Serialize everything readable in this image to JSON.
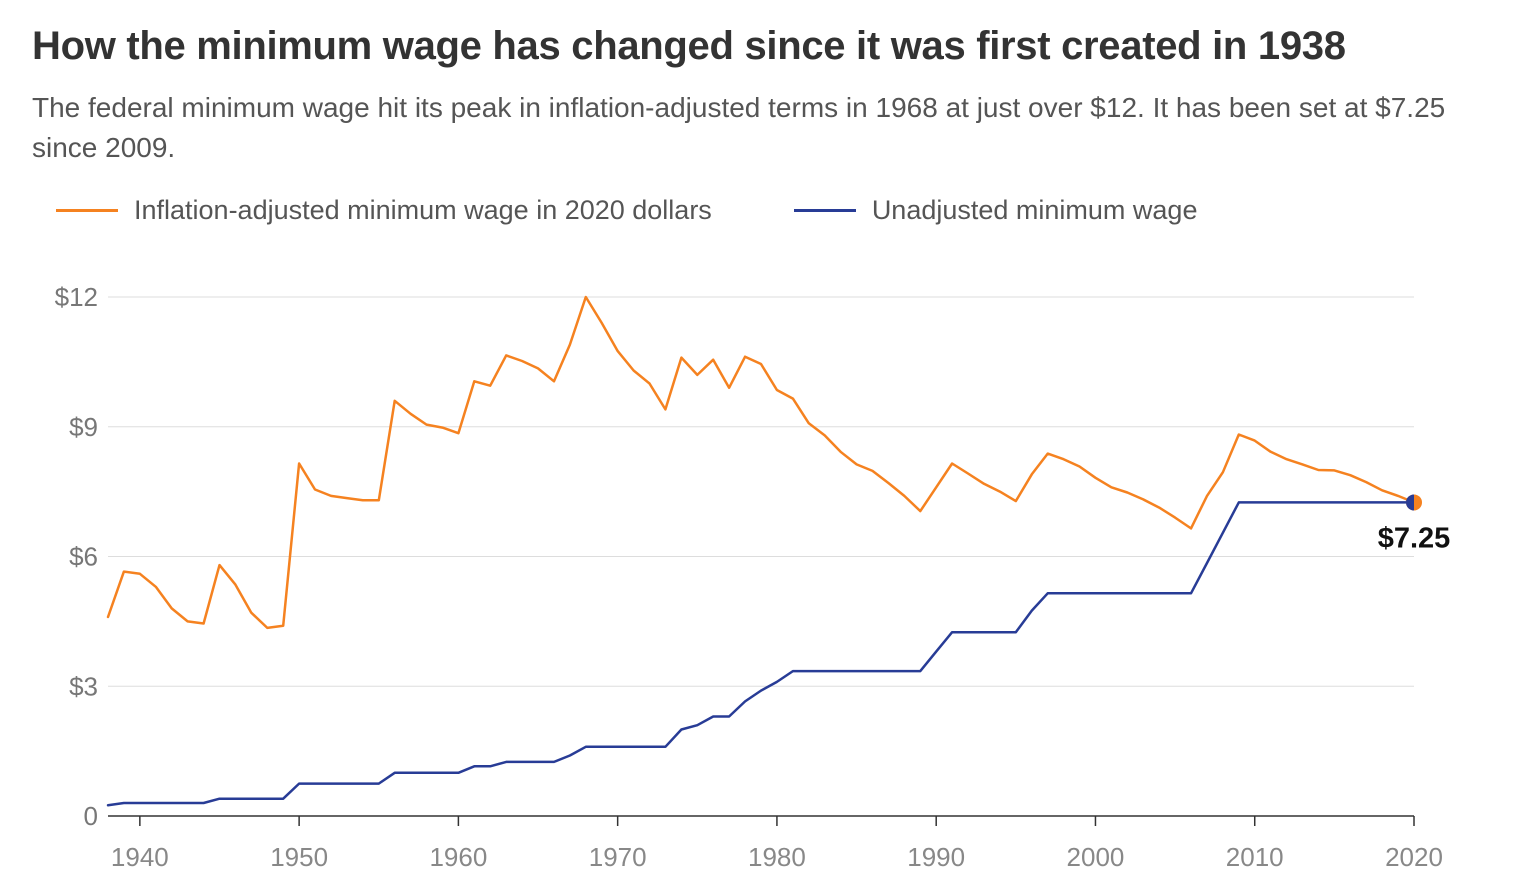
{
  "chart_data": {
    "type": "line",
    "title": "How the minimum wage has changed since it was first created in 1938",
    "subtitle": "The federal minimum wage hit its peak in inflation-adjusted terms in 1968 at just over $12. It has been set at $7.25 since 2009.",
    "xlabel": "",
    "ylabel": "",
    "xlim": [
      1938,
      2020
    ],
    "ylim": [
      0,
      12
    ],
    "x_ticks": [
      1940,
      1950,
      1960,
      1970,
      1980,
      1990,
      2000,
      2010,
      2020
    ],
    "y_ticks": [
      {
        "value": 0,
        "label": "0"
      },
      {
        "value": 3,
        "label": "$3"
      },
      {
        "value": 6,
        "label": "$6"
      },
      {
        "value": 9,
        "label": "$9"
      },
      {
        "value": 12,
        "label": "$12"
      }
    ],
    "grid": true,
    "legend_position": "top-left",
    "annotation": {
      "x": 2020,
      "y": 7.25,
      "label": "$7.25"
    },
    "series": [
      {
        "name": "Inflation-adjusted minimum wage in 2020 dollars",
        "color": "#f58220",
        "points": [
          [
            1938,
            4.6
          ],
          [
            1939,
            5.65
          ],
          [
            1940,
            5.6
          ],
          [
            1941,
            5.3
          ],
          [
            1942,
            4.8
          ],
          [
            1943,
            4.5
          ],
          [
            1944,
            4.45
          ],
          [
            1945,
            5.8
          ],
          [
            1946,
            5.35
          ],
          [
            1947,
            4.7
          ],
          [
            1948,
            4.35
          ],
          [
            1949,
            4.4
          ],
          [
            1950,
            8.15
          ],
          [
            1951,
            7.55
          ],
          [
            1952,
            7.4
          ],
          [
            1953,
            7.35
          ],
          [
            1954,
            7.3
          ],
          [
            1955,
            7.3
          ],
          [
            1956,
            9.6
          ],
          [
            1957,
            9.3
          ],
          [
            1958,
            9.05
          ],
          [
            1959,
            8.98
          ],
          [
            1960,
            8.85
          ],
          [
            1961,
            10.05
          ],
          [
            1962,
            9.95
          ],
          [
            1963,
            10.65
          ],
          [
            1964,
            10.52
          ],
          [
            1965,
            10.35
          ],
          [
            1966,
            10.05
          ],
          [
            1967,
            10.9
          ],
          [
            1968,
            12.0
          ],
          [
            1969,
            11.4
          ],
          [
            1970,
            10.75
          ],
          [
            1971,
            10.3
          ],
          [
            1972,
            10.0
          ],
          [
            1973,
            9.4
          ],
          [
            1974,
            10.6
          ],
          [
            1975,
            10.2
          ],
          [
            1976,
            10.55
          ],
          [
            1977,
            9.9
          ],
          [
            1978,
            10.62
          ],
          [
            1979,
            10.45
          ],
          [
            1980,
            9.85
          ],
          [
            1981,
            9.65
          ],
          [
            1982,
            9.08
          ],
          [
            1983,
            8.8
          ],
          [
            1984,
            8.42
          ],
          [
            1985,
            8.13
          ],
          [
            1986,
            7.98
          ],
          [
            1987,
            7.7
          ],
          [
            1988,
            7.4
          ],
          [
            1989,
            7.05
          ],
          [
            1990,
            7.6
          ],
          [
            1991,
            8.15
          ],
          [
            1992,
            7.92
          ],
          [
            1993,
            7.68
          ],
          [
            1994,
            7.5
          ],
          [
            1995,
            7.28
          ],
          [
            1996,
            7.9
          ],
          [
            1997,
            8.38
          ],
          [
            1998,
            8.25
          ],
          [
            1999,
            8.08
          ],
          [
            2000,
            7.82
          ],
          [
            2001,
            7.6
          ],
          [
            2002,
            7.48
          ],
          [
            2003,
            7.32
          ],
          [
            2004,
            7.13
          ],
          [
            2005,
            6.9
          ],
          [
            2006,
            6.65
          ],
          [
            2007,
            7.4
          ],
          [
            2008,
            7.95
          ],
          [
            2009,
            8.82
          ],
          [
            2010,
            8.68
          ],
          [
            2011,
            8.42
          ],
          [
            2012,
            8.25
          ],
          [
            2013,
            8.13
          ],
          [
            2014,
            8.0
          ],
          [
            2015,
            7.99
          ],
          [
            2016,
            7.88
          ],
          [
            2017,
            7.72
          ],
          [
            2018,
            7.53
          ],
          [
            2019,
            7.4
          ],
          [
            2020,
            7.25
          ]
        ]
      },
      {
        "name": "Unadjusted minimum wage",
        "color": "#283c96",
        "points": [
          [
            1938,
            0.25
          ],
          [
            1939,
            0.3
          ],
          [
            1944,
            0.3
          ],
          [
            1945,
            0.4
          ],
          [
            1949,
            0.4
          ],
          [
            1950,
            0.75
          ],
          [
            1955,
            0.75
          ],
          [
            1956,
            1.0
          ],
          [
            1960,
            1.0
          ],
          [
            1961,
            1.15
          ],
          [
            1962,
            1.15
          ],
          [
            1963,
            1.25
          ],
          [
            1966,
            1.25
          ],
          [
            1967,
            1.4
          ],
          [
            1968,
            1.6
          ],
          [
            1973,
            1.6
          ],
          [
            1974,
            2.0
          ],
          [
            1975,
            2.1
          ],
          [
            1976,
            2.3
          ],
          [
            1977,
            2.3
          ],
          [
            1978,
            2.65
          ],
          [
            1979,
            2.9
          ],
          [
            1980,
            3.1
          ],
          [
            1981,
            3.35
          ],
          [
            1989,
            3.35
          ],
          [
            1990,
            3.8
          ],
          [
            1991,
            4.25
          ],
          [
            1995,
            4.25
          ],
          [
            1996,
            4.75
          ],
          [
            1997,
            5.15
          ],
          [
            2006,
            5.15
          ],
          [
            2007,
            5.85
          ],
          [
            2008,
            6.55
          ],
          [
            2009,
            7.25
          ],
          [
            2020,
            7.25
          ]
        ]
      }
    ]
  }
}
